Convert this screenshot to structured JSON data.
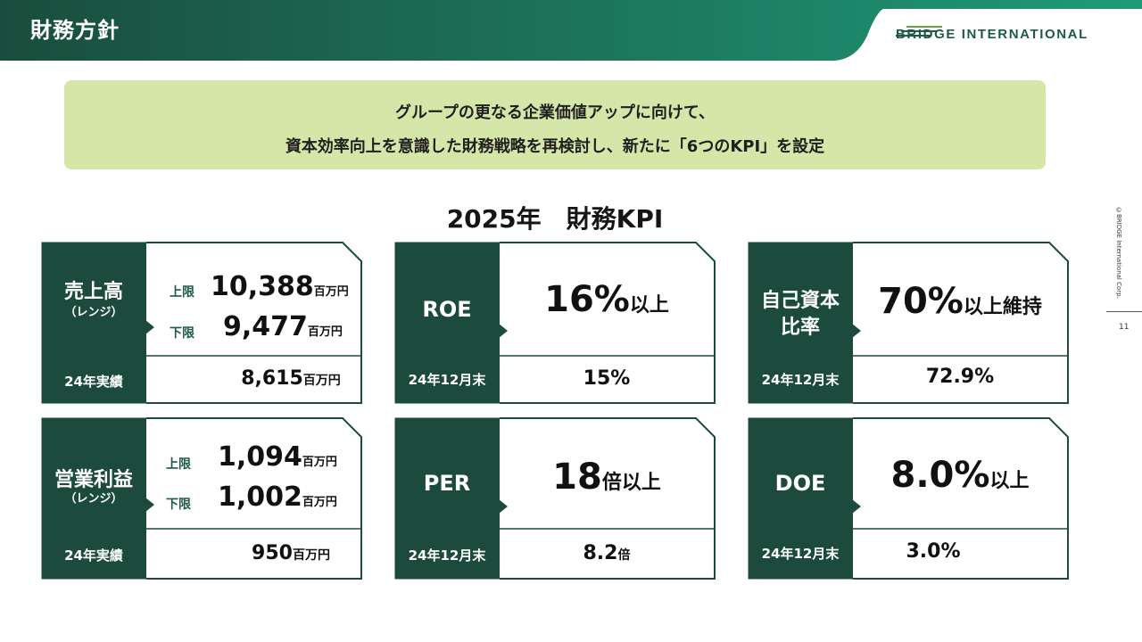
{
  "header": {
    "title": "財務方針",
    "logo": "BRIDGE INTERNATIONAL"
  },
  "banner": {
    "line1": "グループの更なる企業価値アップに向けて、",
    "line2": "資本効率向上を意識した財務戦略を再検討し、新たに「6つのKPI」を設定"
  },
  "kpi_title": "2025年　財務KPI",
  "cards": {
    "sales": {
      "label": "売上高",
      "sub": "（レンジ）",
      "upper_label": "上限",
      "upper_value": "10,388",
      "upper_unit": "百万円",
      "lower_label": "下限",
      "lower_value": "9,477",
      "lower_unit": "百万円",
      "result_label": "24年実績",
      "result_value": "8,615",
      "result_unit": "百万円"
    },
    "op_income": {
      "label": "営業利益",
      "sub": "（レンジ）",
      "upper_label": "上限",
      "upper_value": "1,094",
      "upper_unit": "百万円",
      "lower_label": "下限",
      "lower_value": "1,002",
      "lower_unit": "百万円",
      "result_label": "24年実績",
      "result_value": "950",
      "result_unit": "百万円"
    },
    "roe": {
      "label": "ROE",
      "target_value": "16%",
      "target_unit": "以上",
      "result_label": "24年12月末",
      "result_value": "15%"
    },
    "per": {
      "label": "PER",
      "target_value": "18",
      "target_unit": "倍以上",
      "result_label": "24年12月末",
      "result_value": "8.2",
      "result_unit": "倍"
    },
    "equity_ratio": {
      "label_line1": "自己資本",
      "label_line2": "比率",
      "target_value": "70%",
      "target_unit": "以上維持",
      "result_label": "24年12月末",
      "result_value": "72.9%"
    },
    "doe": {
      "label": "DOE",
      "target_value": "8.0%",
      "target_unit": "以上",
      "result_label": "24年12月末",
      "result_value": "3.0%"
    }
  },
  "footer": {
    "copyright": "©BRIDGE International Corp.",
    "page": "11"
  },
  "colors": {
    "dark_green": "#1c4a3c",
    "banner_green": "#d4e7a9",
    "header_teal": "#1d8f6e"
  }
}
